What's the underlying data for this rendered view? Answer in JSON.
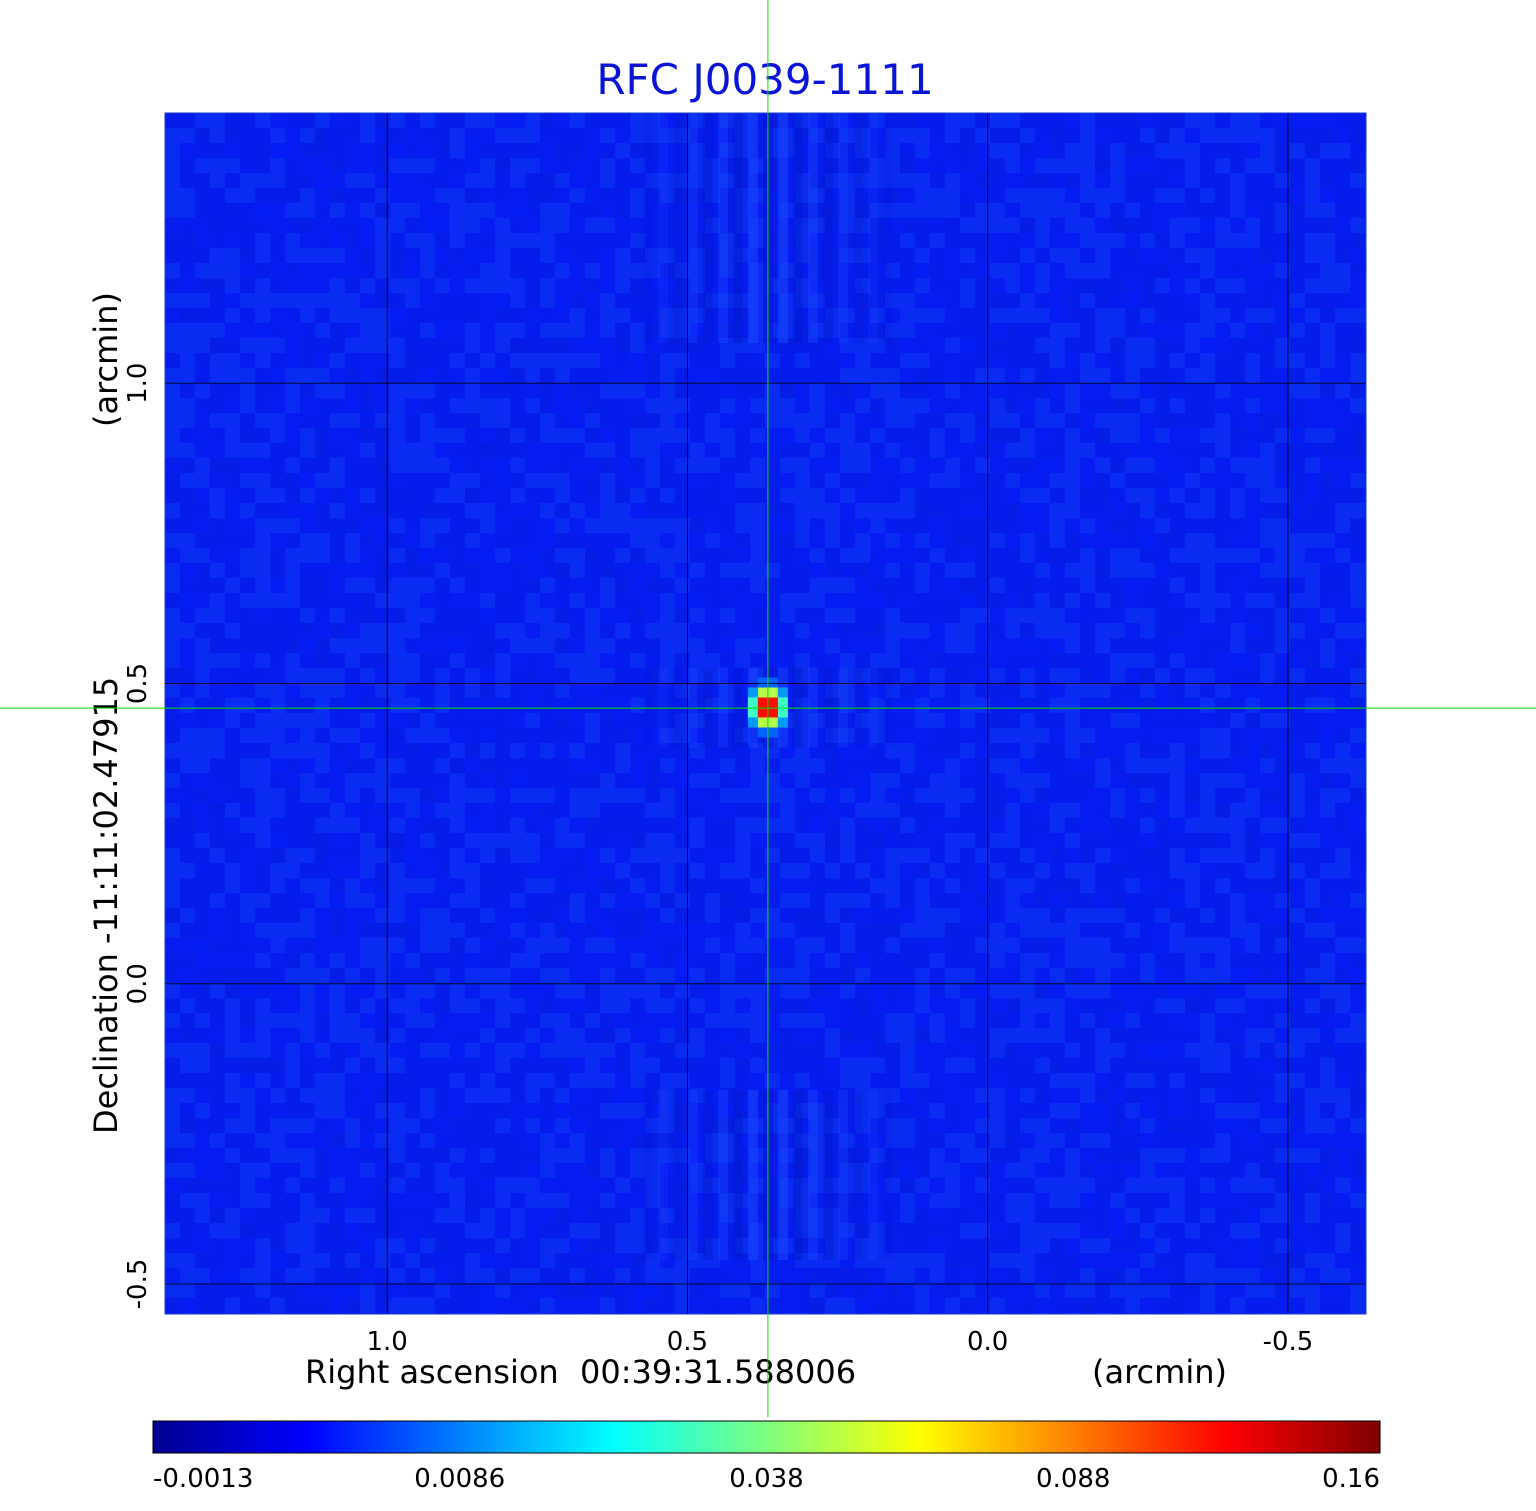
{
  "chart_data": {
    "type": "heatmap",
    "title": "RFC J0039-1111",
    "xlabel": {
      "name": "Right ascension",
      "center": "00:39:31.588006",
      "unit": "(arcmin)"
    },
    "ylabel": {
      "name": "Declination",
      "center": "-11:11:02.47915",
      "unit": "(arcmin)"
    },
    "x_ticks": [
      {
        "value": 1.0,
        "label": "1.0"
      },
      {
        "value": 0.5,
        "label": "0.5"
      },
      {
        "value": 0.0,
        "label": "0.0"
      },
      {
        "value": -0.5,
        "label": "-0.5"
      }
    ],
    "y_ticks": [
      {
        "value": 1.0,
        "label": "1.0"
      },
      {
        "value": 0.5,
        "label": "0.5"
      },
      {
        "value": 0.0,
        "label": "0.0"
      },
      {
        "value": -0.5,
        "label": "-0.5"
      }
    ],
    "xlim": [
      1.37,
      -0.63
    ],
    "ylim": [
      -0.55,
      1.45
    ],
    "grid": true,
    "crosshair": {
      "x": 0.366,
      "y": 0.459,
      "color": "#00e000"
    },
    "source": {
      "x": 0.366,
      "y": 0.46,
      "peak": 0.16
    },
    "background_level": -0.0013,
    "colormap": "jet",
    "colorbar": {
      "min": -0.0013,
      "max": 0.16,
      "ticks": [
        "-0.0013",
        "0.0086",
        "0.038",
        "0.088",
        "0.16"
      ]
    }
  }
}
